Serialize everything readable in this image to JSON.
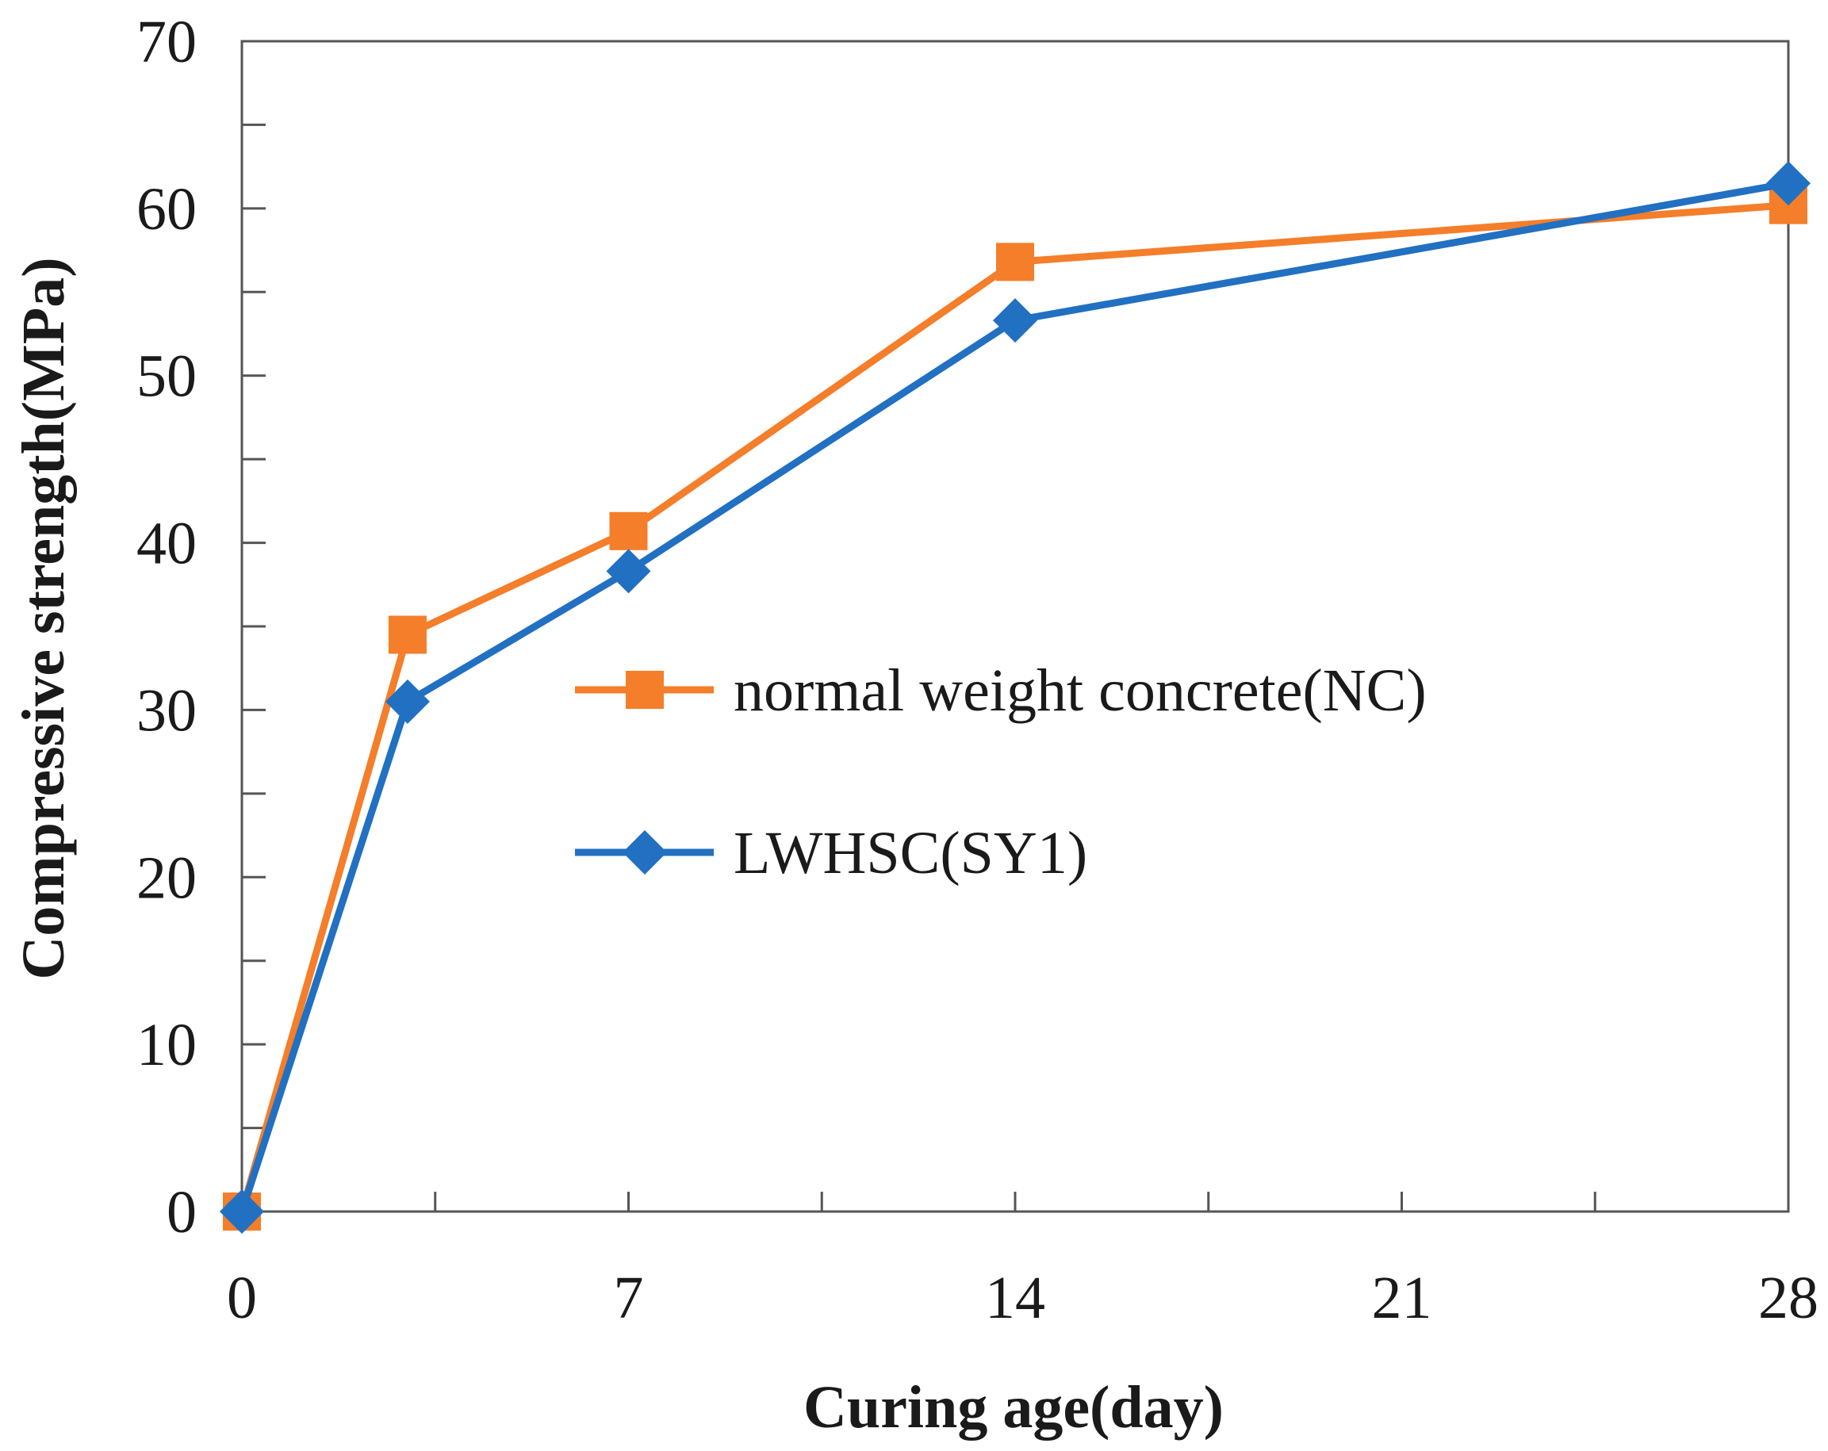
{
  "chart_data": {
    "type": "line",
    "x": [
      0,
      3,
      7,
      14,
      28
    ],
    "series": [
      {
        "name": "normal weight concrete(NC)",
        "color": "#F47E2A",
        "marker": "square",
        "values": [
          0,
          34.5,
          40.7,
          56.8,
          60.2
        ]
      },
      {
        "name": "LWHSC(SY1)",
        "color": "#2170C2",
        "marker": "diamond",
        "values": [
          0,
          30.5,
          38.3,
          53.3,
          61.5
        ]
      }
    ],
    "title": "",
    "xlabel": "Curing age(day)",
    "ylabel": "Compressive strength(MPa)",
    "xlim": [
      0,
      28
    ],
    "ylim": [
      0,
      70
    ],
    "xticks": [
      "0",
      "7",
      "14",
      "21",
      "28"
    ],
    "yticks": [
      "0",
      "10",
      "20",
      "30",
      "40",
      "50",
      "60",
      "70"
    ],
    "grid": false,
    "legend_position": "center-right"
  }
}
